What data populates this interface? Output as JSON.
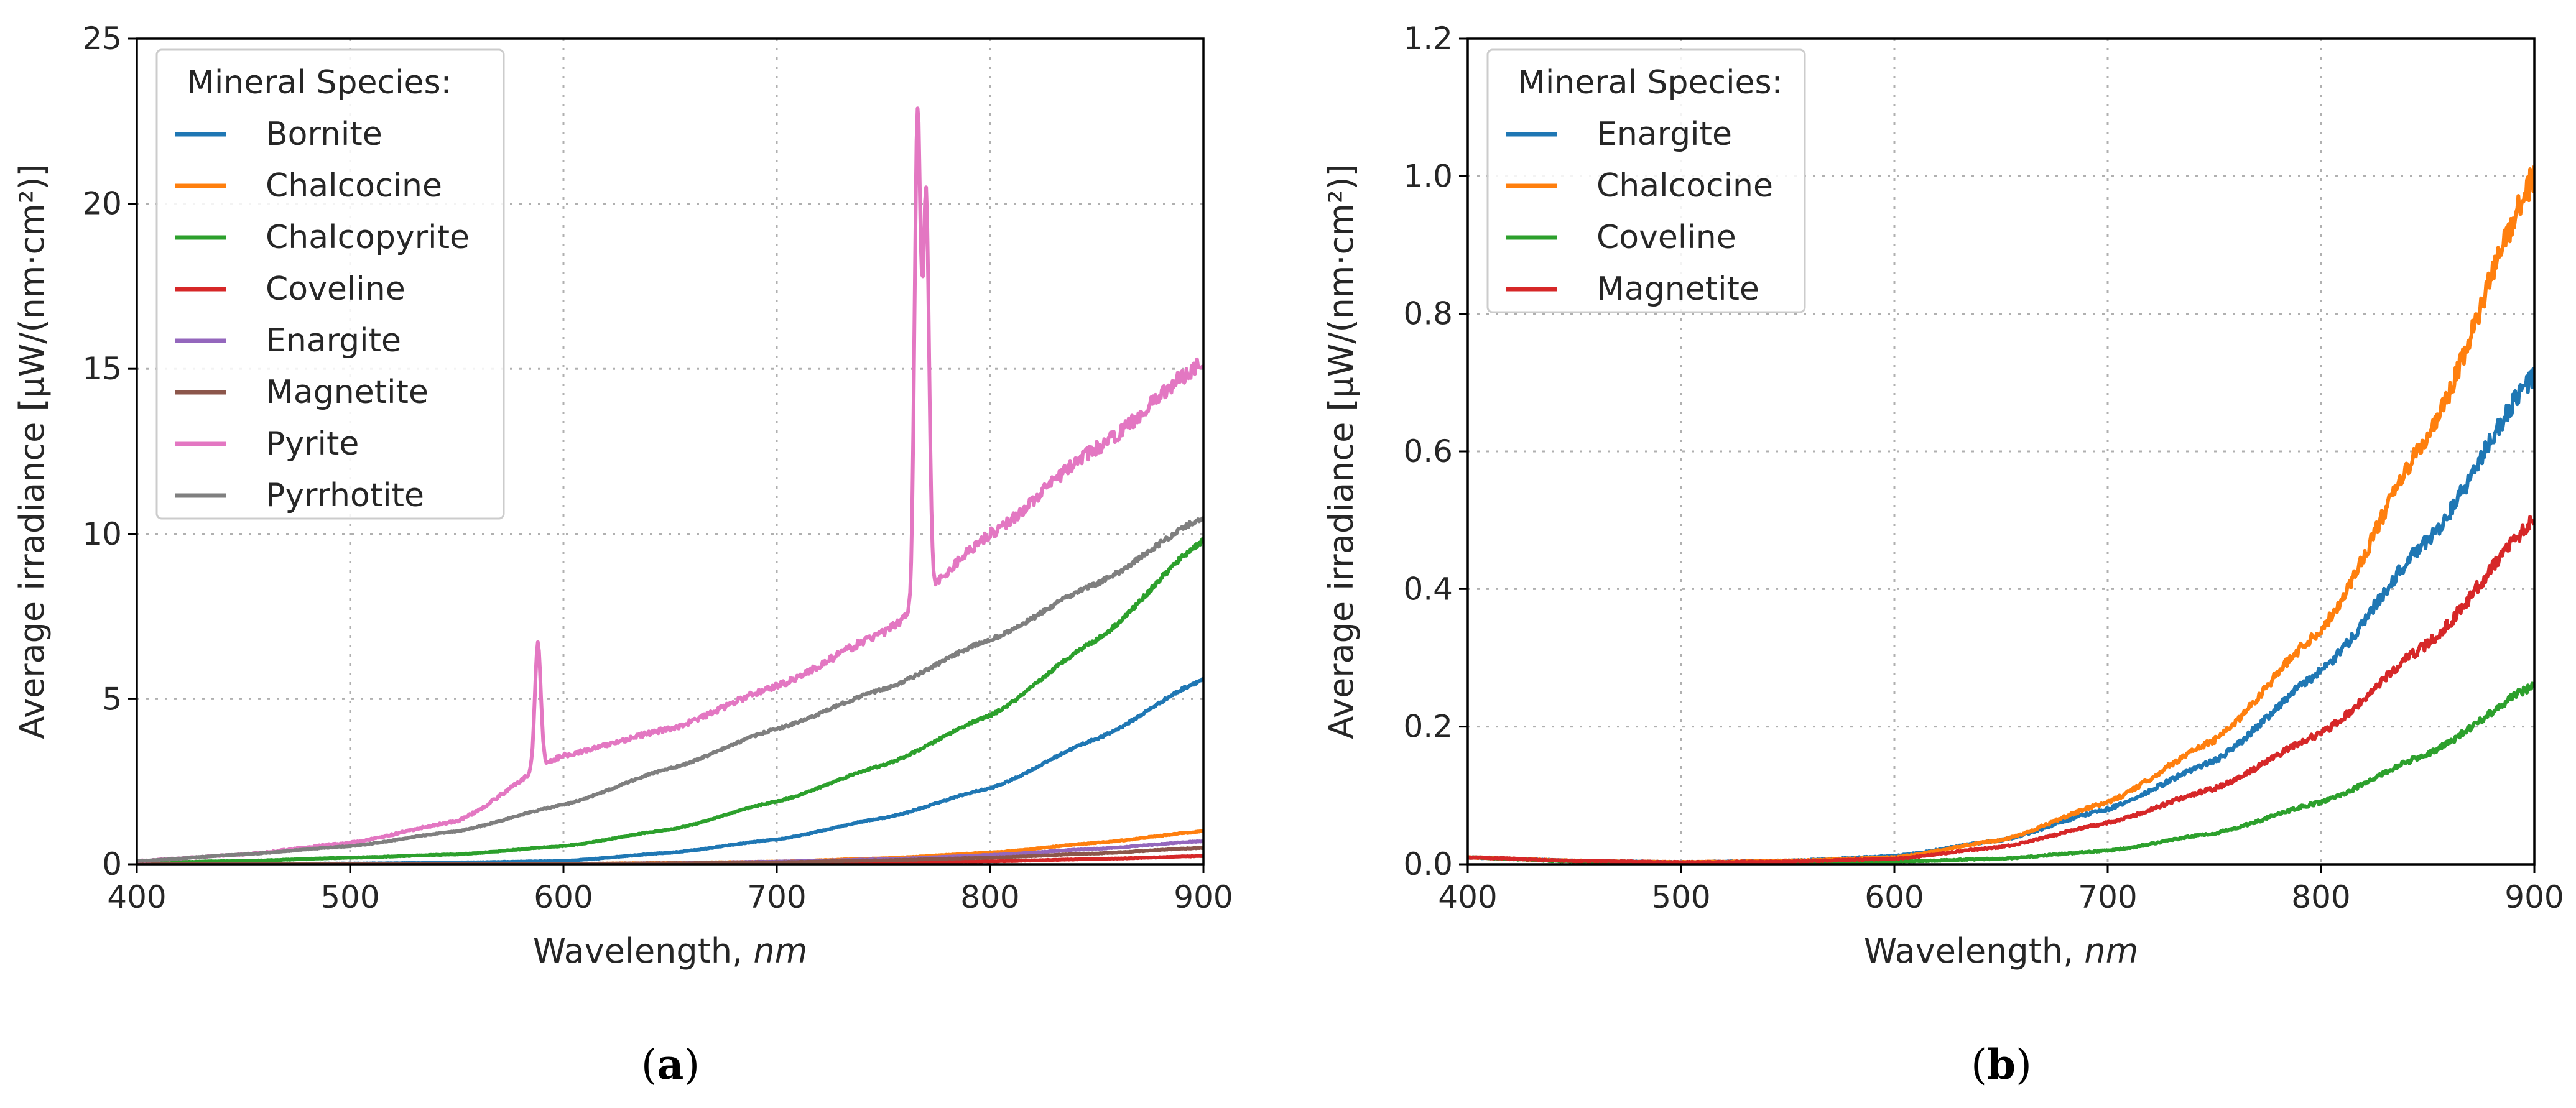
{
  "chart_data": [
    {
      "type": "line",
      "panel": "a",
      "caption": "a",
      "xlabel": "Wavelength, ",
      "xlabel_unit": "nm",
      "ylabel": "Average irradiance [μW/(nm·cm²)]",
      "xlim": [
        400,
        900
      ],
      "ylim": [
        0,
        25
      ],
      "xticks": [
        400,
        500,
        600,
        700,
        800,
        900
      ],
      "yticks": [
        0,
        5,
        10,
        15,
        20,
        25
      ],
      "grid": true,
      "legend_title": "Mineral Species:",
      "legend_position": "upper-left",
      "x": [
        400,
        450,
        500,
        550,
        600,
        650,
        700,
        750,
        800,
        850,
        900
      ],
      "series": [
        {
          "name": "Bornite",
          "color": "#1f77b4",
          "values": [
            0,
            0.01,
            0.02,
            0.05,
            0.1,
            0.35,
            0.75,
            1.4,
            2.3,
            3.8,
            5.6
          ]
        },
        {
          "name": "Chalcocine",
          "color": "#ff7f0e",
          "values": [
            0,
            0,
            0,
            0,
            0.01,
            0.04,
            0.08,
            0.18,
            0.35,
            0.65,
            1.0
          ]
        },
        {
          "name": "Chalcopyrite",
          "color": "#2ca02c",
          "values": [
            0.05,
            0.1,
            0.2,
            0.3,
            0.55,
            1.05,
            1.9,
            3.0,
            4.5,
            6.8,
            9.8
          ]
        },
        {
          "name": "Coveline",
          "color": "#d62728",
          "values": [
            0,
            0,
            0,
            0,
            0,
            0.01,
            0.02,
            0.05,
            0.09,
            0.16,
            0.25
          ]
        },
        {
          "name": "Enargite",
          "color": "#9467bd",
          "values": [
            0,
            0,
            0,
            0,
            0.01,
            0.03,
            0.08,
            0.15,
            0.28,
            0.47,
            0.7
          ]
        },
        {
          "name": "Magnetite",
          "color": "#8c564b",
          "values": [
            0,
            0,
            0,
            0,
            0.01,
            0.03,
            0.06,
            0.12,
            0.2,
            0.33,
            0.5
          ]
        },
        {
          "name": "Pyrite",
          "color": "#e377c2",
          "values": [
            0.1,
            0.3,
            0.65,
            1.3,
            3.3,
            4.1,
            5.4,
            7.0,
            10.0,
            12.6,
            15.2
          ],
          "peaks": [
            {
              "x": 588,
              "y": 6.7
            },
            {
              "x": 766,
              "y": 22.8
            },
            {
              "x": 770,
              "y": 20.2
            }
          ]
        },
        {
          "name": "Pyrrhotite",
          "color": "#7f7f7f",
          "values": [
            0.1,
            0.3,
            0.55,
            1.0,
            1.8,
            2.9,
            4.1,
            5.3,
            6.8,
            8.5,
            10.5
          ]
        }
      ]
    },
    {
      "type": "line",
      "panel": "b",
      "caption": "b",
      "xlabel": "Wavelength, ",
      "xlabel_unit": "nm",
      "ylabel": "Average irradiance [μW/(nm·cm²)]",
      "xlim": [
        400,
        900
      ],
      "ylim": [
        0,
        1.2
      ],
      "xticks": [
        400,
        500,
        600,
        700,
        800,
        900
      ],
      "yticks": [
        "0.0",
        "0.2",
        "0.4",
        "0.6",
        "0.8",
        "1.0",
        "1.2"
      ],
      "grid": true,
      "legend_title": "Mineral Species:",
      "legend_position": "upper-left",
      "x": [
        400,
        450,
        500,
        550,
        600,
        650,
        700,
        750,
        800,
        850,
        900
      ],
      "series": [
        {
          "name": "Enargite",
          "color": "#1f77b4",
          "values": [
            0.01,
            0.005,
            0.003,
            0.005,
            0.012,
            0.035,
            0.08,
            0.15,
            0.28,
            0.47,
            0.71
          ]
        },
        {
          "name": "Chalcocine",
          "color": "#ff7f0e",
          "values": [
            0.01,
            0.005,
            0.003,
            0.005,
            0.01,
            0.035,
            0.09,
            0.18,
            0.34,
            0.62,
            1.0
          ]
        },
        {
          "name": "Coveline",
          "color": "#2ca02c",
          "values": [
            0.01,
            0.004,
            0.002,
            0.002,
            0.004,
            0.008,
            0.02,
            0.045,
            0.09,
            0.16,
            0.26
          ]
        },
        {
          "name": "Magnetite",
          "color": "#d62728",
          "values": [
            0.01,
            0.005,
            0.003,
            0.004,
            0.008,
            0.025,
            0.06,
            0.11,
            0.19,
            0.32,
            0.5
          ]
        }
      ]
    }
  ]
}
